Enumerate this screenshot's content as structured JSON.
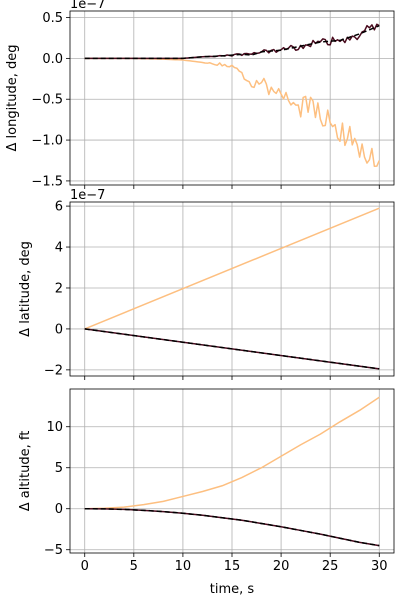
{
  "x_label": "time, s",
  "chart_data": [
    {
      "type": "line",
      "ylabel": "Δ longitude, deg",
      "offset_text": "1e−7",
      "xlim": [
        -1.5,
        31.5
      ],
      "ylim": [
        -1.55,
        0.58
      ],
      "xticks": [
        0,
        5,
        10,
        15,
        20,
        25,
        30
      ],
      "yticks": [
        -1.5,
        -1.0,
        -0.5,
        0.0,
        0.5
      ],
      "ytick_labels": [
        "−1.5",
        "−1.0",
        "−0.5",
        "0.0",
        "0.5"
      ],
      "grid": true,
      "series": [
        {
          "x": [
            0,
            5,
            8,
            10,
            12,
            14,
            15,
            16,
            17,
            18,
            19,
            20,
            21,
            22,
            23,
            24,
            25,
            26,
            27,
            28,
            29,
            29.5,
            30
          ],
          "values": [
            0,
            0,
            -0.01,
            -0.02,
            -0.05,
            -0.08,
            -0.12,
            -0.18,
            -0.35,
            -0.25,
            -0.42,
            -0.45,
            -0.5,
            -0.6,
            -0.55,
            -0.72,
            -0.8,
            -0.9,
            -0.95,
            -1.05,
            -1.3,
            -1.25,
            -1.25
          ],
          "color": "#fdbf80",
          "style": "solid",
          "noisy": true
        },
        {
          "x": [
            0,
            5,
            10,
            12,
            14,
            16,
            17,
            18,
            20,
            22,
            24,
            26,
            28,
            29,
            30
          ],
          "values": [
            0,
            0,
            0,
            0.02,
            0.03,
            0.05,
            0.04,
            0.08,
            0.1,
            0.15,
            0.2,
            0.22,
            0.3,
            0.35,
            0.4
          ],
          "color": "#4a0c1f",
          "style": "solid",
          "noisy": true
        },
        {
          "x": [
            0,
            5,
            10,
            12,
            14,
            16,
            17,
            18,
            20,
            22,
            24,
            26,
            28,
            29,
            30
          ],
          "values": [
            0,
            0,
            0,
            0.02,
            0.03,
            0.05,
            0.04,
            0.08,
            0.1,
            0.15,
            0.2,
            0.22,
            0.3,
            0.35,
            0.4
          ],
          "color": "#000000",
          "style": "dashed",
          "noisy": false
        }
      ]
    },
    {
      "type": "line",
      "ylabel": "Δ latitude, deg",
      "offset_text": "1e−7",
      "xlim": [
        -1.5,
        31.5
      ],
      "ylim": [
        -2.3,
        6.2
      ],
      "xticks": [
        0,
        5,
        10,
        15,
        20,
        25,
        30
      ],
      "yticks": [
        -2,
        0,
        2,
        4,
        6
      ],
      "ytick_labels": [
        "−2",
        "0",
        "2",
        "4",
        "6"
      ],
      "grid": true,
      "series": [
        {
          "x": [
            0,
            30
          ],
          "values": [
            0,
            5.9
          ],
          "color": "#fdbf80",
          "style": "solid",
          "noisy": false
        },
        {
          "x": [
            0,
            30
          ],
          "values": [
            0,
            -1.95
          ],
          "color": "#4a0c1f",
          "style": "solid",
          "noisy": false
        },
        {
          "x": [
            0,
            30
          ],
          "values": [
            0,
            -1.95
          ],
          "color": "#000000",
          "style": "dashed",
          "noisy": false
        }
      ]
    },
    {
      "type": "line",
      "ylabel": "Δ altitude, ft",
      "offset_text": "",
      "xlim": [
        -1.5,
        31.5
      ],
      "ylim": [
        -5.4,
        14.6
      ],
      "xticks": [
        0,
        5,
        10,
        15,
        20,
        25,
        30
      ],
      "yticks": [
        -5,
        0,
        5,
        10
      ],
      "ytick_labels": [
        "−5",
        "0",
        "5",
        "10"
      ],
      "grid": true,
      "series": [
        {
          "x": [
            0,
            2,
            4,
            6,
            8,
            10,
            12,
            14,
            16,
            18,
            20,
            22,
            24,
            26,
            28,
            30
          ],
          "values": [
            0,
            0.05,
            0.2,
            0.5,
            0.9,
            1.5,
            2.1,
            2.8,
            3.8,
            5.0,
            6.4,
            7.8,
            9.1,
            10.6,
            12.0,
            13.6
          ],
          "color": "#fdbf80",
          "style": "solid",
          "noisy": false
        },
        {
          "x": [
            0,
            2,
            4,
            6,
            8,
            10,
            12,
            14,
            16,
            18,
            20,
            22,
            24,
            26,
            28,
            30
          ],
          "values": [
            0,
            -0.02,
            -0.08,
            -0.2,
            -0.35,
            -0.55,
            -0.8,
            -1.1,
            -1.4,
            -1.8,
            -2.2,
            -2.65,
            -3.1,
            -3.6,
            -4.1,
            -4.5
          ],
          "color": "#4a0c1f",
          "style": "solid",
          "noisy": false
        },
        {
          "x": [
            0,
            2,
            4,
            6,
            8,
            10,
            12,
            14,
            16,
            18,
            20,
            22,
            24,
            26,
            28,
            30
          ],
          "values": [
            0,
            -0.02,
            -0.08,
            -0.2,
            -0.35,
            -0.55,
            -0.8,
            -1.1,
            -1.4,
            -1.8,
            -2.2,
            -2.65,
            -3.1,
            -3.6,
            -4.1,
            -4.5
          ],
          "color": "#000000",
          "style": "dashed",
          "noisy": false
        }
      ]
    }
  ]
}
